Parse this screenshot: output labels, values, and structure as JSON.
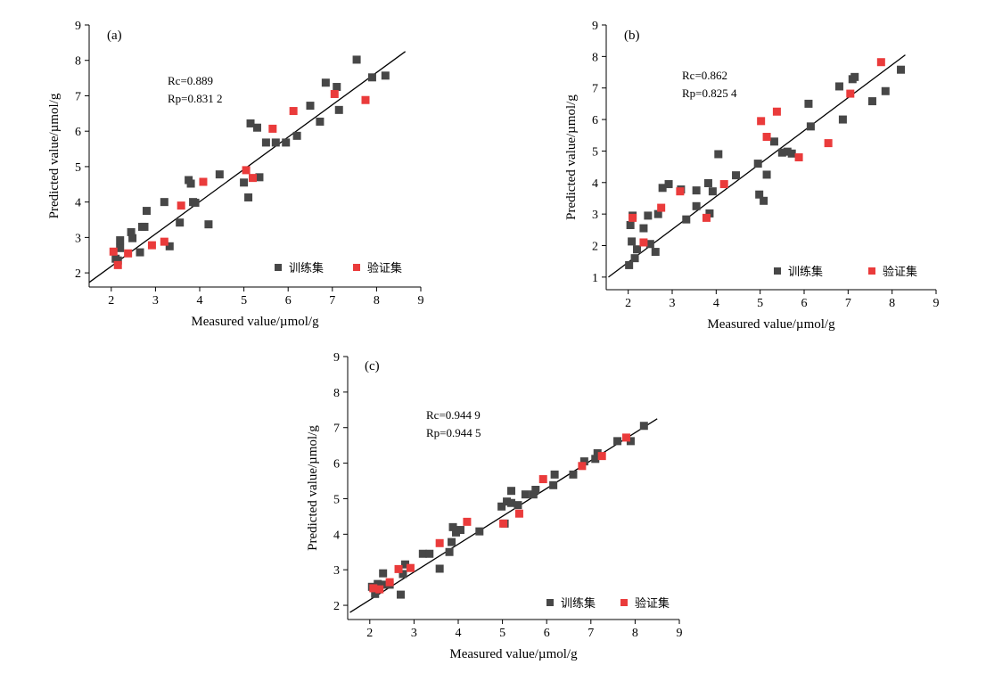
{
  "colors": {
    "train": "#474747",
    "validation": "#ea3b3b",
    "axis": "#000000",
    "fit_line": "#000000"
  },
  "chart_data": [
    {
      "type": "scatter",
      "panel_label": "(a)",
      "xlabel": "Measured value/µmol/g",
      "ylabel": "Predicted value/µmol/g",
      "xlim": [
        1.5,
        9
      ],
      "ylim": [
        1.6,
        9
      ],
      "xticks": [
        "2",
        "3",
        "4",
        "5",
        "6",
        "7",
        "8",
        "9"
      ],
      "yticks": [
        "2",
        "3",
        "4",
        "5",
        "6",
        "7",
        "8",
        "9"
      ],
      "stats": [
        "Rc=0.889",
        "Rp=0.831 2"
      ],
      "fit_line": [
        [
          1.5,
          1.73
        ],
        [
          8.65,
          8.25
        ]
      ],
      "legend": [
        "训练集",
        "验证集"
      ],
      "series": [
        {
          "name": "训练集",
          "color": "#474747",
          "points": [
            [
              2.1,
              2.4
            ],
            [
              2.15,
              2.35
            ],
            [
              2.2,
              2.7
            ],
            [
              2.2,
              2.92
            ],
            [
              2.45,
              3.15
            ],
            [
              2.48,
              2.98
            ],
            [
              2.65,
              2.58
            ],
            [
              2.7,
              3.3
            ],
            [
              2.75,
              3.3
            ],
            [
              2.8,
              3.75
            ],
            [
              3.2,
              4.0
            ],
            [
              3.32,
              2.75
            ],
            [
              3.55,
              3.42
            ],
            [
              3.75,
              4.62
            ],
            [
              3.8,
              4.52
            ],
            [
              3.85,
              4.0
            ],
            [
              3.9,
              3.98
            ],
            [
              4.2,
              3.37
            ],
            [
              4.45,
              4.78
            ],
            [
              5.0,
              4.55
            ],
            [
              5.1,
              4.13
            ],
            [
              5.15,
              6.22
            ],
            [
              5.3,
              6.1
            ],
            [
              5.35,
              4.7
            ],
            [
              5.5,
              5.68
            ],
            [
              5.72,
              5.68
            ],
            [
              5.95,
              5.68
            ],
            [
              6.2,
              5.87
            ],
            [
              6.5,
              6.72
            ],
            [
              6.72,
              6.27
            ],
            [
              6.85,
              7.37
            ],
            [
              7.1,
              7.25
            ],
            [
              7.15,
              6.6
            ],
            [
              7.55,
              8.02
            ],
            [
              7.9,
              7.52
            ],
            [
              8.2,
              7.57
            ]
          ]
        },
        {
          "name": "验证集",
          "color": "#ea3b3b",
          "points": [
            [
              2.05,
              2.6
            ],
            [
              2.15,
              2.22
            ],
            [
              2.38,
              2.55
            ],
            [
              2.92,
              2.78
            ],
            [
              3.2,
              2.88
            ],
            [
              3.58,
              3.9
            ],
            [
              4.08,
              4.57
            ],
            [
              5.05,
              4.9
            ],
            [
              5.2,
              4.68
            ],
            [
              5.65,
              6.07
            ],
            [
              6.12,
              6.57
            ],
            [
              7.05,
              7.05
            ],
            [
              7.75,
              6.88
            ]
          ]
        }
      ]
    },
    {
      "type": "scatter",
      "panel_label": "(b)",
      "xlabel": "Measured value/µmol/g",
      "ylabel": "Predicted value/µmol/g",
      "xlim": [
        1.5,
        9
      ],
      "ylim": [
        0.6,
        9
      ],
      "xticks": [
        "2",
        "3",
        "4",
        "5",
        "6",
        "7",
        "8",
        "9"
      ],
      "yticks": [
        "1",
        "2",
        "3",
        "4",
        "5",
        "6",
        "7",
        "8",
        "9"
      ],
      "stats": [
        "Rc=0.862",
        "Rp=0.825 4"
      ],
      "fit_line": [
        [
          1.55,
          1.0
        ],
        [
          8.3,
          8.05
        ]
      ],
      "legend": [
        "训练集",
        "验证集"
      ],
      "series": [
        {
          "name": "训练集",
          "color": "#474747",
          "points": [
            [
              2.02,
              1.38
            ],
            [
              2.05,
              2.65
            ],
            [
              2.08,
              2.13
            ],
            [
              2.1,
              2.95
            ],
            [
              2.15,
              1.6
            ],
            [
              2.2,
              1.88
            ],
            [
              2.35,
              2.55
            ],
            [
              2.45,
              2.95
            ],
            [
              2.5,
              2.05
            ],
            [
              2.62,
              1.8
            ],
            [
              2.68,
              3.0
            ],
            [
              2.78,
              3.83
            ],
            [
              2.92,
              3.95
            ],
            [
              3.2,
              3.78
            ],
            [
              3.32,
              2.83
            ],
            [
              3.55,
              3.25
            ],
            [
              3.55,
              3.75
            ],
            [
              3.82,
              3.98
            ],
            [
              3.85,
              3.02
            ],
            [
              3.92,
              3.72
            ],
            [
              4.05,
              4.9
            ],
            [
              4.45,
              4.23
            ],
            [
              4.95,
              4.6
            ],
            [
              4.98,
              3.62
            ],
            [
              5.08,
              3.42
            ],
            [
              5.15,
              4.25
            ],
            [
              5.32,
              5.3
            ],
            [
              5.5,
              4.95
            ],
            [
              5.62,
              4.98
            ],
            [
              5.72,
              4.92
            ],
            [
              6.1,
              6.5
            ],
            [
              6.15,
              5.78
            ],
            [
              6.8,
              7.05
            ],
            [
              6.88,
              6.0
            ],
            [
              7.1,
              7.28
            ],
            [
              7.15,
              7.35
            ],
            [
              7.55,
              6.58
            ],
            [
              7.85,
              6.9
            ],
            [
              8.2,
              7.58
            ]
          ]
        },
        {
          "name": "验证集",
          "color": "#ea3b3b",
          "points": [
            [
              2.1,
              2.88
            ],
            [
              2.35,
              2.1
            ],
            [
              2.75,
              3.2
            ],
            [
              3.18,
              3.72
            ],
            [
              3.78,
              2.88
            ],
            [
              4.18,
              3.95
            ],
            [
              5.02,
              5.95
            ],
            [
              5.15,
              5.45
            ],
            [
              5.38,
              6.25
            ],
            [
              5.88,
              4.8
            ],
            [
              6.55,
              5.25
            ],
            [
              7.05,
              6.82
            ],
            [
              7.75,
              7.82
            ]
          ]
        }
      ]
    },
    {
      "type": "scatter",
      "panel_label": "(c)",
      "xlabel": "Measured value/µmol/g",
      "ylabel": "Predicted value/µmol/g",
      "xlim": [
        1.5,
        9
      ],
      "ylim": [
        1.6,
        9
      ],
      "xticks": [
        "2",
        "3",
        "4",
        "5",
        "6",
        "7",
        "8",
        "9"
      ],
      "yticks": [
        "2",
        "3",
        "4",
        "5",
        "6",
        "7",
        "8",
        "9"
      ],
      "stats": [
        "Rc=0.944 9",
        "Rp=0.944 5"
      ],
      "fit_line": [
        [
          1.55,
          1.8
        ],
        [
          8.5,
          7.25
        ]
      ],
      "legend": [
        "训练集",
        "验证集"
      ],
      "series": [
        {
          "name": "训练集",
          "color": "#474747",
          "points": [
            [
              2.05,
              2.52
            ],
            [
              2.12,
              2.32
            ],
            [
              2.18,
              2.6
            ],
            [
              2.3,
              2.9
            ],
            [
              2.35,
              2.58
            ],
            [
              2.45,
              2.58
            ],
            [
              2.7,
              2.3
            ],
            [
              2.75,
              2.88
            ],
            [
              2.8,
              3.15
            ],
            [
              3.2,
              3.45
            ],
            [
              3.35,
              3.45
            ],
            [
              3.58,
              3.03
            ],
            [
              3.8,
              3.5
            ],
            [
              3.85,
              3.78
            ],
            [
              3.88,
              4.2
            ],
            [
              3.95,
              4.05
            ],
            [
              4.05,
              4.12
            ],
            [
              4.48,
              4.08
            ],
            [
              4.98,
              4.78
            ],
            [
              5.05,
              4.3
            ],
            [
              5.1,
              4.92
            ],
            [
              5.2,
              5.22
            ],
            [
              5.2,
              4.88
            ],
            [
              5.35,
              4.82
            ],
            [
              5.52,
              5.12
            ],
            [
              5.7,
              5.12
            ],
            [
              5.75,
              5.25
            ],
            [
              6.15,
              5.38
            ],
            [
              6.18,
              5.68
            ],
            [
              6.6,
              5.68
            ],
            [
              6.85,
              6.05
            ],
            [
              7.1,
              6.12
            ],
            [
              7.15,
              6.28
            ],
            [
              7.6,
              6.62
            ],
            [
              7.9,
              6.62
            ],
            [
              8.2,
              7.05
            ]
          ]
        },
        {
          "name": "验证集",
          "color": "#ea3b3b",
          "points": [
            [
              2.08,
              2.48
            ],
            [
              2.22,
              2.45
            ],
            [
              2.45,
              2.65
            ],
            [
              2.65,
              3.02
            ],
            [
              2.92,
              3.05
            ],
            [
              3.58,
              3.75
            ],
            [
              4.2,
              4.35
            ],
            [
              5.02,
              4.3
            ],
            [
              5.38,
              4.58
            ],
            [
              5.92,
              5.55
            ],
            [
              6.8,
              5.92
            ],
            [
              7.25,
              6.2
            ],
            [
              7.8,
              6.72
            ]
          ]
        }
      ]
    }
  ]
}
